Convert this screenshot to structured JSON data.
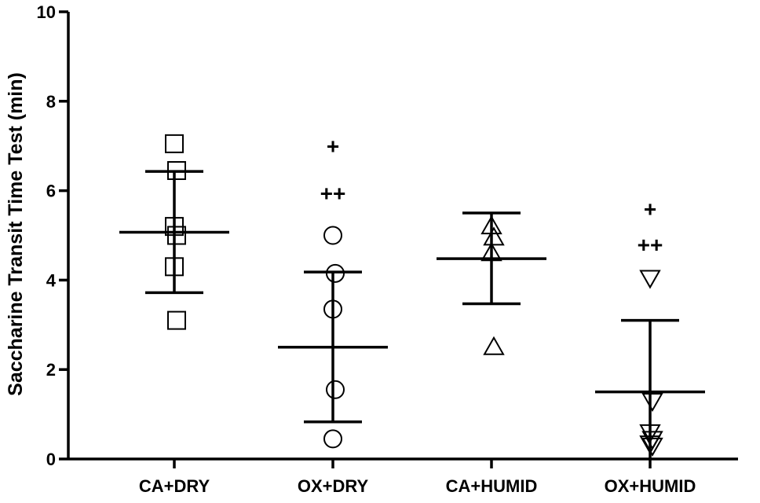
{
  "chart_data": {
    "type": "scatter",
    "ylabel": "Saccharine Transit Time Test (min)",
    "ylim": [
      0,
      10
    ],
    "yticks": [
      "0",
      "2",
      "4",
      "6",
      "8",
      "10"
    ],
    "grid": false,
    "categories": [
      "CA+DRY",
      "OX+DRY",
      "CA+HUMID",
      "OX+HUMID"
    ],
    "groups": [
      {
        "category": "CA+DRY",
        "marker": "square",
        "points": [
          7.05,
          6.45,
          5.2,
          5.0,
          4.3,
          3.1
        ],
        "mean": 5.07,
        "upper": 6.43,
        "lower": 3.72,
        "annotations": []
      },
      {
        "category": "OX+DRY",
        "marker": "circle",
        "points": [
          5.0,
          4.15,
          3.35,
          1.55,
          0.45
        ],
        "mean": 2.5,
        "upper": 4.18,
        "lower": 0.83,
        "annotations": [
          {
            "text": "+",
            "y": 7.0
          },
          {
            "text": "++",
            "y": 5.95
          }
        ]
      },
      {
        "category": "CA+HUMID",
        "marker": "triangle-up",
        "points": [
          5.2,
          4.95,
          4.6,
          2.5
        ],
        "mean": 4.48,
        "upper": 5.5,
        "lower": 3.47,
        "annotations": []
      },
      {
        "category": "OX+HUMID",
        "marker": "triangle-down",
        "points": [
          4.05,
          1.3,
          0.6,
          0.45,
          0.35,
          0.3
        ],
        "mean": 1.5,
        "upper": 3.1,
        "lower": 0.0,
        "annotations": [
          {
            "text": "+",
            "y": 5.6
          },
          {
            "text": "++",
            "y": 4.8
          }
        ]
      }
    ]
  }
}
